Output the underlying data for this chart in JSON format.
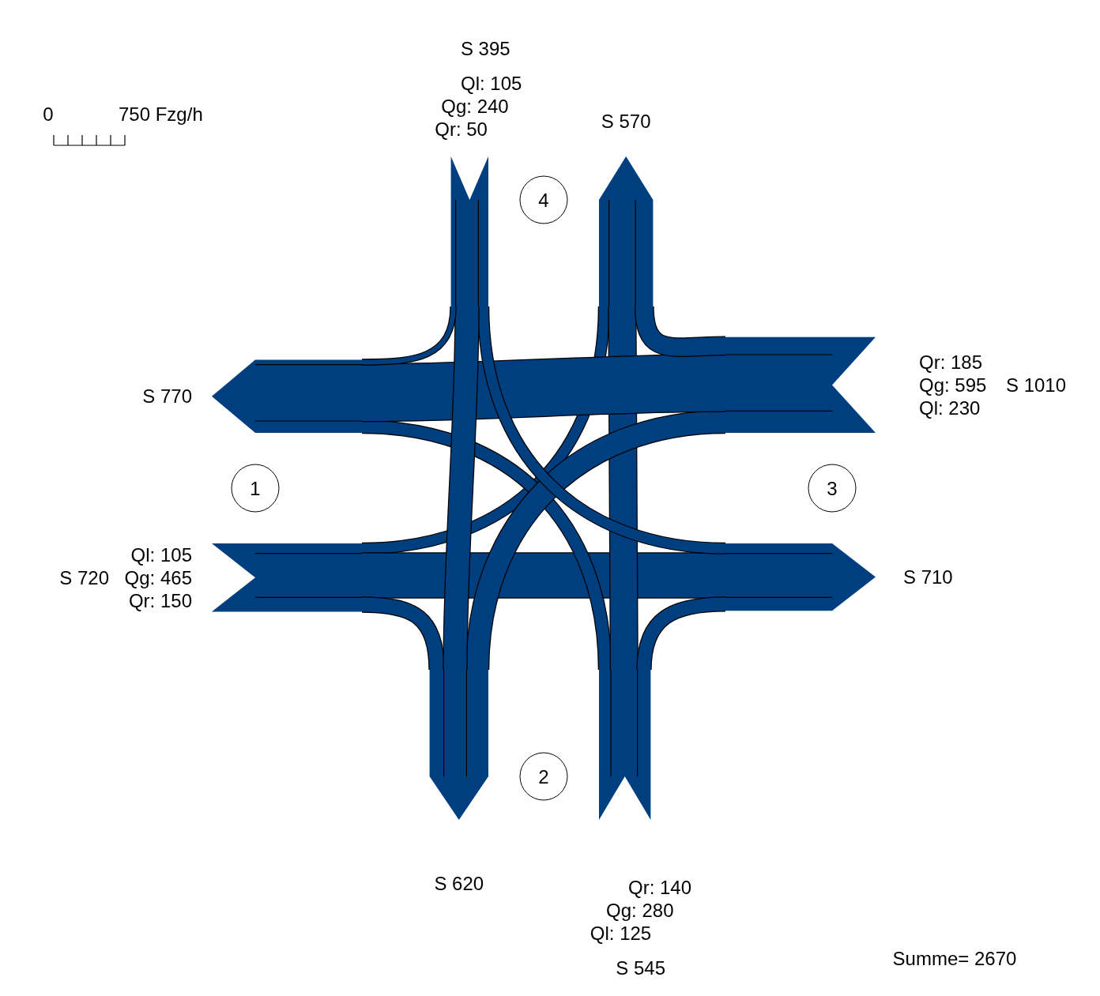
{
  "chart_data": {
    "type": "other",
    "categories": [
      "1",
      "2",
      "3",
      "4"
    ],
    "series": [
      {
        "color": "#003f7f",
        "values": [
          105,
          125,
          230,
          105
        ],
        "value_labels": [
          "Ql: 105",
          "Ql: 125",
          "Ql: 230",
          "Ql: 105"
        ]
      },
      {
        "color": "#003f7f",
        "values": [
          465,
          280,
          595,
          240
        ],
        "value_labels": [
          "Qg: 465",
          "Qg: 280",
          "Qg: 595",
          "Qg: 240"
        ]
      },
      {
        "color": "#003f7f",
        "values": [
          150,
          140,
          185,
          50
        ],
        "value_labels": [
          "Qr: 150",
          "Qr: 140",
          "Qr: 185",
          "Qr: 50"
        ]
      }
    ],
    "annotations": [
      "S 720",
      "S 770",
      "S 545",
      "S 620",
      "S 1010",
      "S 710",
      "S 395",
      "S 570",
      "Summe= 2670",
      "0",
      "750 Fzg/h"
    ]
  }
}
